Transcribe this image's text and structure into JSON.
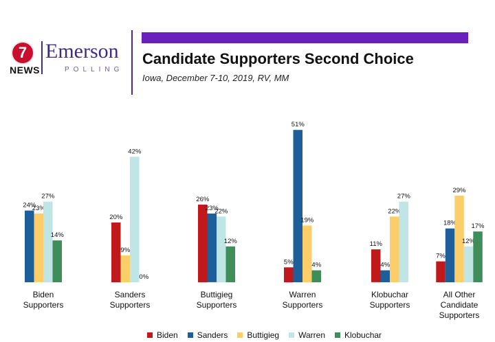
{
  "logo": {
    "station_number": "7",
    "station_label": "NEWS",
    "brand_name": "Emerson",
    "brand_sub": "POLLING"
  },
  "header": {
    "title": "Candidate Supporters Second Choice",
    "subtitle": "Iowa, December 7-10, 2019, RV, MM"
  },
  "colors": {
    "accent_bar": "#6a1fbf",
    "brand": "#3f2a85"
  },
  "chart_data": {
    "type": "bar",
    "title": "Candidate Supporters Second Choice",
    "xlabel": "",
    "ylabel": "",
    "ylim": [
      0,
      55
    ],
    "grid": false,
    "legend_position": "bottom",
    "categories": [
      [
        "Biden",
        "Supporters"
      ],
      [
        "Sanders",
        "Supporters"
      ],
      [
        "Buttigieg",
        "Supporters"
      ],
      [
        "Warren",
        "Supporters"
      ],
      [
        "Klobuchar",
        "Supporters"
      ],
      [
        "All Other",
        "Candidate",
        "Supporters"
      ]
    ],
    "series": [
      {
        "name": "Biden",
        "color": "#c0191c",
        "values": [
          null,
          20,
          26,
          5,
          11,
          7
        ]
      },
      {
        "name": "Sanders",
        "color": "#1f5f99",
        "values": [
          24,
          null,
          23,
          51,
          4,
          18
        ]
      },
      {
        "name": "Buttigieg",
        "color": "#fcce6a",
        "values": [
          23,
          9,
          null,
          19,
          22,
          29
        ]
      },
      {
        "name": "Warren",
        "color": "#bfe6e4",
        "values": [
          27,
          42,
          22,
          null,
          27,
          12
        ]
      },
      {
        "name": "Klobuchar",
        "color": "#3f8e5a",
        "values": [
          14,
          0,
          12,
          4,
          null,
          17
        ]
      }
    ],
    "value_suffix": "%"
  }
}
